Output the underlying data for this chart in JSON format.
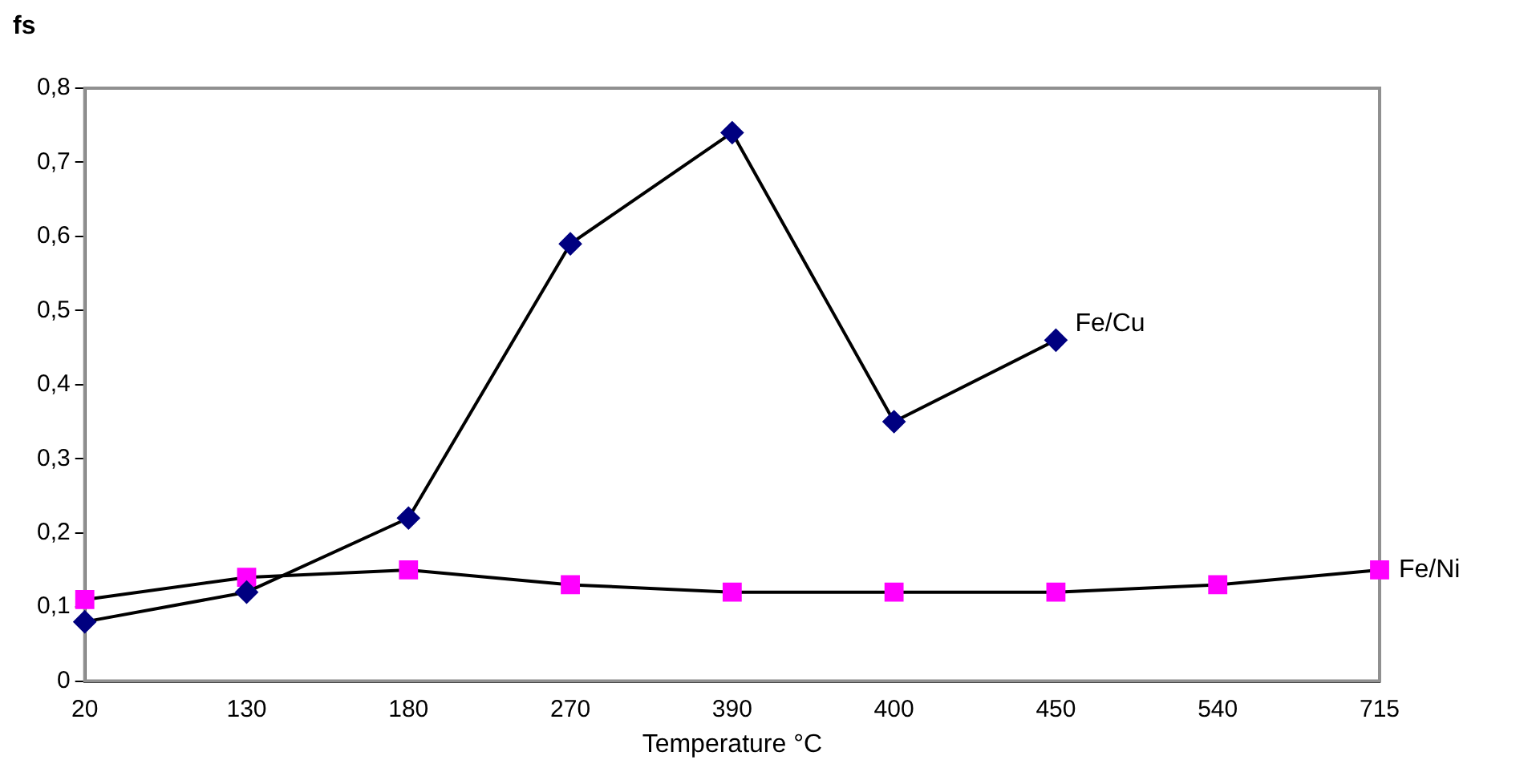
{
  "chart_data": {
    "type": "line",
    "xlabel": "Temperature °C",
    "ylabel": "fs",
    "categories": [
      "20",
      "130",
      "180",
      "270",
      "390",
      "400",
      "450",
      "540",
      "715"
    ],
    "series": [
      {
        "name": "Fe/Cu",
        "color": "#000080",
        "marker": "diamond",
        "values": [
          0.08,
          0.12,
          0.22,
          0.59,
          0.74,
          0.35,
          0.46,
          null,
          null
        ]
      },
      {
        "name": "Fe/Ni",
        "color": "#ff00ff",
        "marker": "square",
        "values": [
          0.11,
          0.14,
          0.15,
          0.13,
          0.12,
          0.12,
          0.12,
          0.13,
          0.15
        ]
      }
    ],
    "ylim": [
      0,
      0.8
    ],
    "yticks": [
      0,
      {
        "value": 0.1,
        "label": "0,1"
      },
      {
        "value": 0.2,
        "label": "0,2"
      },
      {
        "value": 0.3,
        "label": "0,3"
      },
      {
        "value": 0.4,
        "label": "0,4"
      },
      {
        "value": 0.5,
        "label": "0,5"
      },
      {
        "value": 0.6,
        "label": "0,6"
      },
      {
        "value": 0.7,
        "label": "0,7"
      },
      {
        "value": 0.8,
        "label": "0,8"
      }
    ],
    "grid": false,
    "legend": false,
    "line_style": "solid"
  }
}
